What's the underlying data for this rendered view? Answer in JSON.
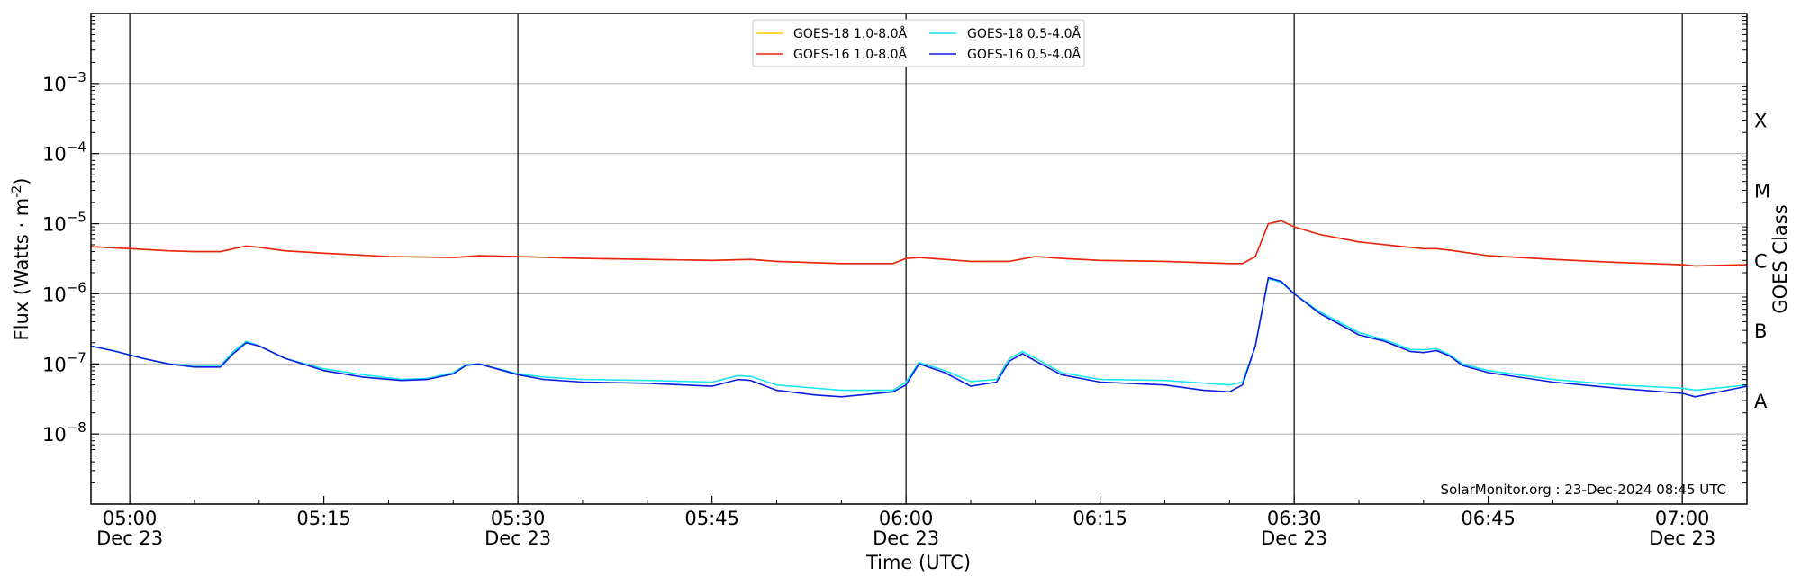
{
  "chart_data": {
    "type": "line",
    "xlabel": "Time (UTC)",
    "ylabel": "Flux (Watts · m",
    "ylabel_sup": "-2",
    "ylabel_tail": ")",
    "right_label": "GOES Class",
    "y_scale": "log",
    "ylim": [
      1e-09,
      0.01
    ],
    "xlim_minutes": [
      "04:57",
      "07:05"
    ],
    "grid": "horizontal at decades",
    "legend_position": "top-center",
    "credit": "SolarMonitor.org : 23-Dec-2024 08:45 UTC",
    "y_ticks": [
      {
        "value": 1e-08,
        "base": "10",
        "exp": "−8"
      },
      {
        "value": 1e-07,
        "base": "10",
        "exp": "−7"
      },
      {
        "value": 1e-06,
        "base": "10",
        "exp": "−6"
      },
      {
        "value": 1e-05,
        "base": "10",
        "exp": "−5"
      },
      {
        "value": 0.0001,
        "base": "10",
        "exp": "−4"
      },
      {
        "value": 0.001,
        "base": "10",
        "exp": "−3"
      }
    ],
    "x_ticks": [
      {
        "time": "05:00",
        "line1": "05:00",
        "line2": "Dec 23",
        "vline": true
      },
      {
        "time": "05:15",
        "line1": "05:15",
        "line2": "",
        "vline": false
      },
      {
        "time": "05:30",
        "line1": "05:30",
        "line2": "Dec 23",
        "vline": true
      },
      {
        "time": "05:45",
        "line1": "05:45",
        "line2": "",
        "vline": false
      },
      {
        "time": "06:00",
        "line1": "06:00",
        "line2": "Dec 23",
        "vline": true
      },
      {
        "time": "06:15",
        "line1": "06:15",
        "line2": "",
        "vline": false
      },
      {
        "time": "06:30",
        "line1": "06:30",
        "line2": "Dec 23",
        "vline": true
      },
      {
        "time": "06:45",
        "line1": "06:45",
        "line2": "",
        "vline": false
      },
      {
        "time": "07:00",
        "line1": "07:00",
        "line2": "Dec 23",
        "vline": true
      }
    ],
    "classes": [
      {
        "label": "A",
        "value": 3e-08
      },
      {
        "label": "B",
        "value": 3e-07
      },
      {
        "label": "C",
        "value": 3e-06
      },
      {
        "label": "M",
        "value": 3e-05
      },
      {
        "label": "X",
        "value": 0.0003
      }
    ],
    "series": [
      {
        "name": "GOES-18 1.0-8.0Å",
        "color": "#ffcc00",
        "times": [
          "04:57",
          "04:59",
          "05:01",
          "05:03",
          "05:05",
          "05:07",
          "05:09",
          "05:10",
          "05:12",
          "05:15",
          "05:20",
          "05:25",
          "05:27",
          "05:30",
          "05:35",
          "05:40",
          "05:45",
          "05:48",
          "05:50",
          "05:55",
          "05:59",
          "06:00",
          "06:01",
          "06:03",
          "06:05",
          "06:08",
          "06:10",
          "06:12",
          "06:15",
          "06:20",
          "06:25",
          "06:26",
          "06:27",
          "06:28",
          "06:29",
          "06:30",
          "06:32",
          "06:35",
          "06:38",
          "06:40",
          "06:41",
          "06:42",
          "06:45",
          "06:50",
          "06:55",
          "07:00",
          "07:01",
          "07:05"
        ],
        "values": [
          4.7e-06,
          4.5e-06,
          4.3e-06,
          4.1e-06,
          4e-06,
          4e-06,
          4.8e-06,
          4.6e-06,
          4.1e-06,
          3.8e-06,
          3.4e-06,
          3.3e-06,
          3.5e-06,
          3.4e-06,
          3.2e-06,
          3.1e-06,
          3e-06,
          3.1e-06,
          2.9e-06,
          2.7e-06,
          2.7e-06,
          3.2e-06,
          3.3e-06,
          3.1e-06,
          2.9e-06,
          2.9e-06,
          3.4e-06,
          3.2e-06,
          3e-06,
          2.9e-06,
          2.7e-06,
          2.7e-06,
          3.4e-06,
          1e-05,
          1.1e-05,
          9e-06,
          7e-06,
          5.5e-06,
          4.8e-06,
          4.4e-06,
          4.4e-06,
          4.2e-06,
          3.5e-06,
          3.1e-06,
          2.8e-06,
          2.6e-06,
          2.5e-06,
          2.6e-06
        ]
      },
      {
        "name": "GOES-16 1.0-8.0Å",
        "color": "#e8241a",
        "times": [
          "04:57",
          "04:59",
          "05:01",
          "05:03",
          "05:05",
          "05:07",
          "05:09",
          "05:10",
          "05:12",
          "05:15",
          "05:20",
          "05:25",
          "05:27",
          "05:30",
          "05:35",
          "05:40",
          "05:45",
          "05:48",
          "05:50",
          "05:55",
          "05:59",
          "06:00",
          "06:01",
          "06:03",
          "06:05",
          "06:08",
          "06:10",
          "06:12",
          "06:15",
          "06:20",
          "06:25",
          "06:26",
          "06:27",
          "06:28",
          "06:29",
          "06:30",
          "06:32",
          "06:35",
          "06:38",
          "06:40",
          "06:41",
          "06:42",
          "06:45",
          "06:50",
          "06:55",
          "07:00",
          "07:01",
          "07:05"
        ],
        "values": [
          4.7e-06,
          4.5e-06,
          4.3e-06,
          4.1e-06,
          4e-06,
          4e-06,
          4.8e-06,
          4.6e-06,
          4.1e-06,
          3.8e-06,
          3.4e-06,
          3.3e-06,
          3.5e-06,
          3.4e-06,
          3.2e-06,
          3.1e-06,
          3e-06,
          3.1e-06,
          2.9e-06,
          2.7e-06,
          2.7e-06,
          3.2e-06,
          3.3e-06,
          3.1e-06,
          2.9e-06,
          2.9e-06,
          3.4e-06,
          3.2e-06,
          3e-06,
          2.9e-06,
          2.7e-06,
          2.7e-06,
          3.4e-06,
          1e-05,
          1.1e-05,
          9e-06,
          7e-06,
          5.5e-06,
          4.8e-06,
          4.4e-06,
          4.4e-06,
          4.2e-06,
          3.5e-06,
          3.1e-06,
          2.8e-06,
          2.6e-06,
          2.5e-06,
          2.6e-06
        ]
      },
      {
        "name": "GOES-18 0.5-4.0Å",
        "color": "#1ce6ee",
        "times": [
          "04:57",
          "04:59",
          "05:01",
          "05:03",
          "05:05",
          "05:07",
          "05:08",
          "05:09",
          "05:10",
          "05:12",
          "05:15",
          "05:18",
          "05:21",
          "05:23",
          "05:25",
          "05:26",
          "05:27",
          "05:30",
          "05:32",
          "05:35",
          "05:40",
          "05:45",
          "05:47",
          "05:48",
          "05:50",
          "05:55",
          "05:59",
          "06:00",
          "06:01",
          "06:03",
          "06:05",
          "06:07",
          "06:08",
          "06:09",
          "06:10",
          "06:12",
          "06:15",
          "06:20",
          "06:25",
          "06:26",
          "06:27",
          "06:28",
          "06:29",
          "06:30",
          "06:32",
          "06:35",
          "06:37",
          "06:39",
          "06:40",
          "06:41",
          "06:42",
          "06:43",
          "06:45",
          "06:50",
          "06:55",
          "07:00",
          "07:01",
          "07:05"
        ],
        "values": [
          1.8e-07,
          1.5e-07,
          1.2e-07,
          1e-07,
          9.5e-08,
          9.5e-08,
          1.5e-07,
          2.1e-07,
          1.8e-07,
          1.2e-07,
          8.5e-08,
          7e-08,
          6e-08,
          6.2e-08,
          7.5e-08,
          9.8e-08,
          1e-07,
          7.2e-08,
          6.5e-08,
          6e-08,
          5.8e-08,
          5.5e-08,
          6.8e-08,
          6.6e-08,
          5e-08,
          4.2e-08,
          4.2e-08,
          5.5e-08,
          1.05e-07,
          8e-08,
          5.6e-08,
          6e-08,
          1.2e-07,
          1.5e-07,
          1.2e-07,
          7.5e-08,
          6e-08,
          5.8e-08,
          5e-08,
          5.5e-08,
          1.8e-07,
          1.65e-06,
          1.45e-06,
          1e-06,
          5.5e-07,
          2.8e-07,
          2.2e-07,
          1.6e-07,
          1.6e-07,
          1.65e-07,
          1.35e-07,
          1e-07,
          8e-08,
          6e-08,
          5e-08,
          4.5e-08,
          4.2e-08,
          5e-08
        ]
      },
      {
        "name": "GOES-16 0.5-4.0Å",
        "color": "#0a1fe0",
        "times": [
          "04:57",
          "04:59",
          "05:01",
          "05:03",
          "05:05",
          "05:07",
          "05:08",
          "05:09",
          "05:10",
          "05:12",
          "05:15",
          "05:18",
          "05:21",
          "05:23",
          "05:25",
          "05:26",
          "05:27",
          "05:30",
          "05:32",
          "05:35",
          "05:40",
          "05:45",
          "05:47",
          "05:48",
          "05:50",
          "05:53",
          "05:55",
          "05:59",
          "06:00",
          "06:01",
          "06:03",
          "06:05",
          "06:07",
          "06:08",
          "06:09",
          "06:10",
          "06:12",
          "06:15",
          "06:20",
          "06:23",
          "06:25",
          "06:26",
          "06:27",
          "06:28",
          "06:29",
          "06:30",
          "06:32",
          "06:35",
          "06:37",
          "06:39",
          "06:40",
          "06:41",
          "06:42",
          "06:43",
          "06:45",
          "06:50",
          "06:55",
          "07:00",
          "07:01",
          "07:05"
        ],
        "values": [
          1.8e-07,
          1.5e-07,
          1.2e-07,
          1e-07,
          9e-08,
          9e-08,
          1.4e-07,
          2e-07,
          1.8e-07,
          1.2e-07,
          8e-08,
          6.5e-08,
          5.8e-08,
          6e-08,
          7.2e-08,
          9.5e-08,
          1e-07,
          7e-08,
          6e-08,
          5.5e-08,
          5.3e-08,
          4.8e-08,
          6e-08,
          5.8e-08,
          4.2e-08,
          3.6e-08,
          3.4e-08,
          4e-08,
          5e-08,
          1e-07,
          7.5e-08,
          4.8e-08,
          5.5e-08,
          1.1e-07,
          1.4e-07,
          1.1e-07,
          7e-08,
          5.5e-08,
          5e-08,
          4.2e-08,
          4e-08,
          5e-08,
          1.8e-07,
          1.7e-06,
          1.5e-06,
          1e-06,
          5.2e-07,
          2.6e-07,
          2.1e-07,
          1.5e-07,
          1.45e-07,
          1.55e-07,
          1.3e-07,
          9.5e-08,
          7.5e-08,
          5.5e-08,
          4.5e-08,
          3.8e-08,
          3.4e-08,
          4.8e-08
        ]
      }
    ]
  }
}
